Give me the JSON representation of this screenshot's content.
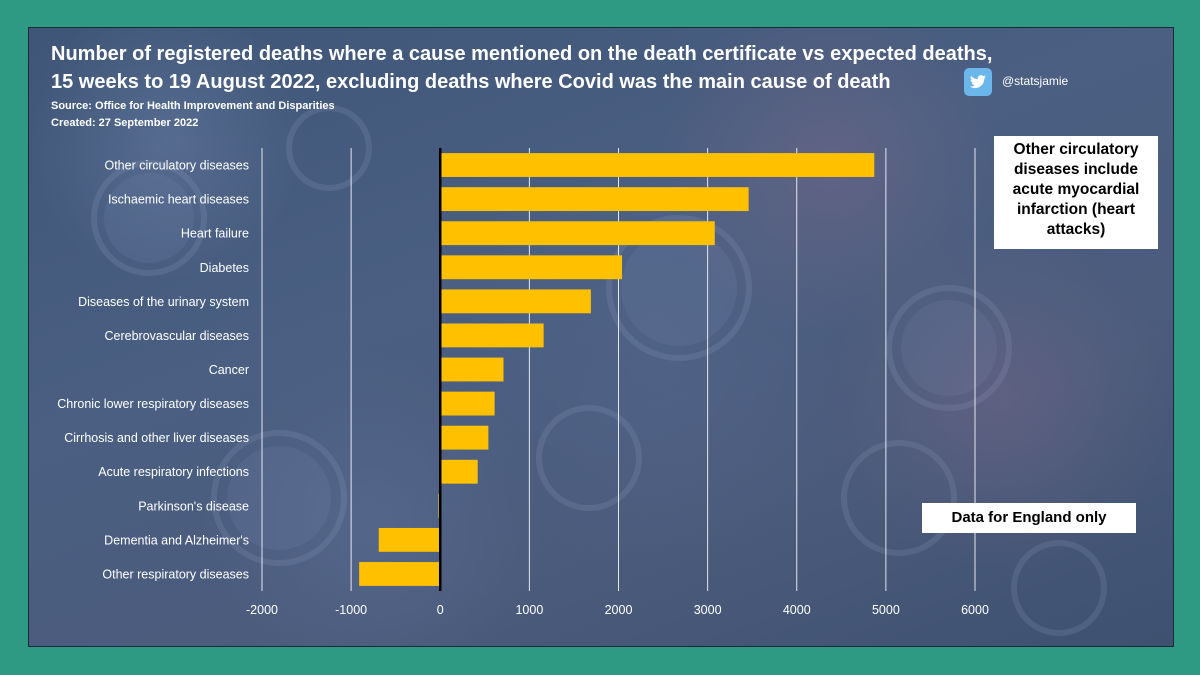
{
  "title": "Number of registered deaths where a cause mentioned on the death certificate vs expected deaths, 15 weeks to 19 August 2022, excluding deaths where Covid was the main cause of death",
  "source": "Source: Office for Health Improvement and Disparities",
  "created": "Created: 27 September 2022",
  "twitter": {
    "handle": "@statsjamie",
    "icon": "twitter-bird-icon",
    "color": "#6bb6ea"
  },
  "annotations": {
    "circulatory_note": "Other circulatory diseases include acute myocardial infarction (heart attacks)",
    "england_note": "Data for England only"
  },
  "colors": {
    "bar": "#ffc000",
    "background": "#2e9a84",
    "panel": "#4a5f82",
    "text": "#ffffff"
  },
  "chart_data": {
    "type": "bar",
    "orientation": "horizontal",
    "title": "Number of registered deaths where a cause mentioned on the death certificate vs expected deaths, 15 weeks to 19 August 2022, excluding deaths where Covid was the main cause of death",
    "categories": [
      "Other circulatory diseases",
      "Ischaemic heart diseases",
      "Heart failure",
      "Diabetes",
      "Diseases of the urinary system",
      "Cerebrovascular diseases",
      "Cancer",
      "Chronic lower respiratory diseases",
      "Cirrhosis and other liver diseases",
      "Acute respiratory infections",
      "Parkinson's disease",
      "Dementia and Alzheimer's",
      "Other respiratory diseases"
    ],
    "values": [
      4870,
      3460,
      3080,
      2040,
      1690,
      1160,
      710,
      610,
      540,
      420,
      -20,
      -690,
      -910
    ],
    "xlim": [
      -2000,
      6000
    ],
    "xticks": [
      -2000,
      -1000,
      0,
      1000,
      2000,
      3000,
      4000,
      5000,
      6000
    ],
    "xlabel": "",
    "ylabel": "",
    "grid": true,
    "legend": "none"
  }
}
